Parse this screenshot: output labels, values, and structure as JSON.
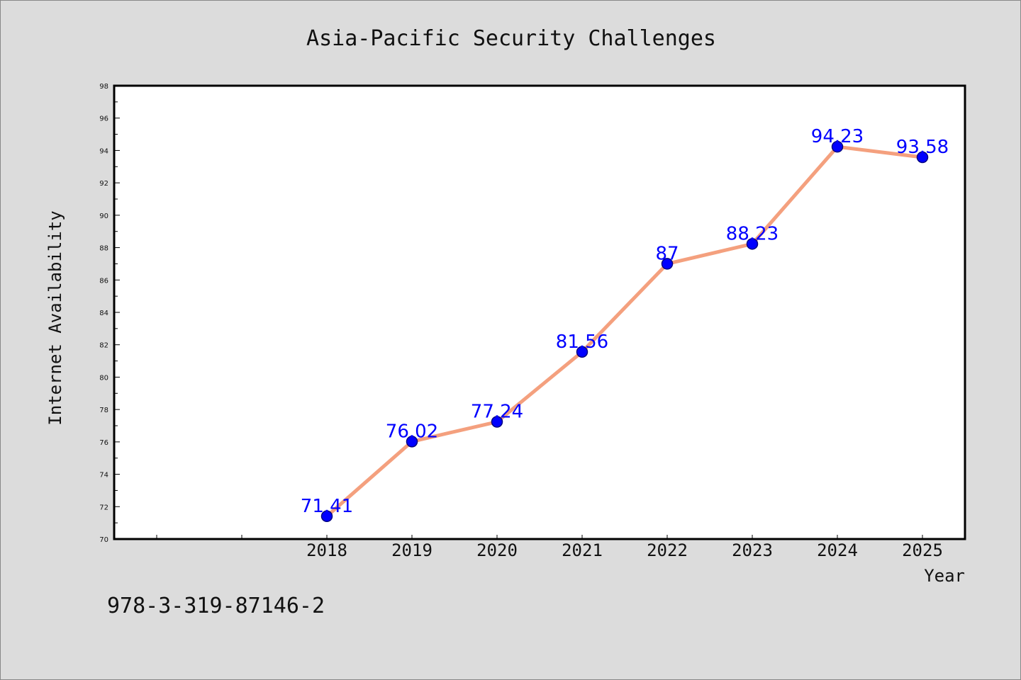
{
  "chart_data": {
    "type": "line",
    "title": "Asia-Pacific Security Challenges",
    "xlabel": "Year",
    "ylabel": "Internet Availability",
    "categories": [
      "2018",
      "2019",
      "2020",
      "2021",
      "2022",
      "2023",
      "2024",
      "2025"
    ],
    "values": [
      71.41,
      76.02,
      77.24,
      81.56,
      87,
      88.23,
      94.23,
      93.58
    ],
    "data_labels": [
      "71.41",
      "76.02",
      "77.24",
      "81.56",
      "87",
      "88.23",
      "94.23",
      "93.58"
    ],
    "ylim": [
      70,
      98
    ],
    "y_major_ticks": [
      70,
      72,
      74,
      76,
      78,
      80,
      82,
      84,
      86,
      88,
      90,
      92,
      94,
      96,
      98
    ],
    "y_tick_labels": [
      "70",
      "72",
      "74",
      "76",
      "78",
      "80",
      "82",
      "84",
      "86",
      "88",
      "90",
      "92",
      "94",
      "96",
      "98"
    ],
    "x_leading_empty_slots": 2,
    "grid": false,
    "colors": {
      "line": "#f4a07e",
      "marker": "#0000ff",
      "marker_edge": "#000080",
      "data_label": "#0000ff",
      "plot_background": "#ffffff",
      "figure_background": "#dcdcdc",
      "frame": "#000000"
    }
  },
  "footer": {
    "isbn": "978-3-319-87146-2"
  }
}
